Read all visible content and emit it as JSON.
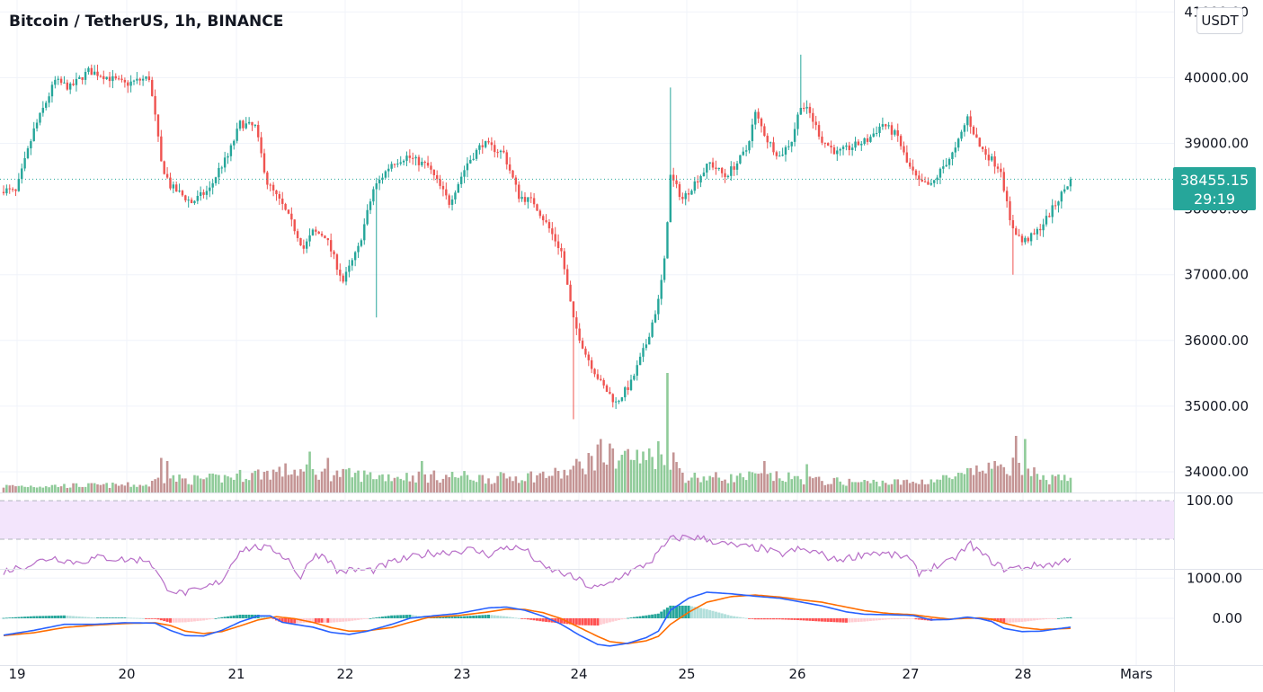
{
  "header": {
    "title": "Bitcoin / TetherUS, 1h, BINANCE",
    "currency": "USDT"
  },
  "price_tag": {
    "price": "38455.15",
    "countdown": "29:19",
    "color": "#26a69a"
  },
  "colors": {
    "up": "#26a69a",
    "down": "#ef5350",
    "vol_up": "#8fcb99",
    "vol_down": "#c49494",
    "rsi_line": "#b86fc8",
    "rsi_band": "#f3e5fc",
    "macd_line": "#2962ff",
    "signal_line": "#ff6d00",
    "hist_up_strong": "#26a69a",
    "hist_up_weak": "#b2dfdb",
    "hist_down_strong": "#ff5252",
    "hist_down_weak": "#ffcdd2",
    "grid": "#f0f3fa"
  },
  "chart_data": [
    {
      "type": "candlestick",
      "x_axis": {
        "tick_labels": [
          "19",
          "20",
          "21",
          "22",
          "23",
          "24",
          "25",
          "26",
          "27",
          "28",
          "Mars"
        ]
      },
      "y_axis": {
        "tick_labels": [
          "34000.00",
          "35000.00",
          "36000.00",
          "37000.00",
          "38000.00",
          "39000.00",
          "40000.00",
          "41000.00"
        ],
        "range": [
          33700,
          41200
        ]
      },
      "last_price": 38455.15,
      "close_path": [
        [
          0,
          38300
        ],
        [
          4,
          38250
        ],
        [
          10,
          39200
        ],
        [
          17,
          39950
        ],
        [
          22,
          39850
        ],
        [
          28,
          40100
        ],
        [
          32,
          40050
        ],
        [
          40,
          39900
        ],
        [
          48,
          40000
        ],
        [
          50,
          39400
        ],
        [
          52,
          38700
        ],
        [
          55,
          38350
        ],
        [
          62,
          38100
        ],
        [
          68,
          38300
        ],
        [
          71,
          38600
        ],
        [
          74,
          38800
        ],
        [
          78,
          39300
        ],
        [
          83,
          39250
        ],
        [
          87,
          38400
        ],
        [
          92,
          38050
        ],
        [
          96,
          37700
        ],
        [
          99,
          37400
        ],
        [
          102,
          37650
        ],
        [
          106,
          37600
        ],
        [
          112,
          36900
        ],
        [
          117,
          37400
        ],
        [
          122,
          38300
        ],
        [
          128,
          38700
        ],
        [
          133,
          38800
        ],
        [
          140,
          38650
        ],
        [
          147,
          38100
        ],
        [
          153,
          38700
        ],
        [
          158,
          39000
        ],
        [
          165,
          38850
        ],
        [
          170,
          38200
        ],
        [
          175,
          38100
        ],
        [
          180,
          37700
        ],
        [
          184,
          37350
        ],
        [
          188,
          36300
        ],
        [
          192,
          35800
        ],
        [
          197,
          35350
        ],
        [
          202,
          35050
        ],
        [
          207,
          35350
        ],
        [
          212,
          35950
        ],
        [
          216,
          36600
        ],
        [
          218,
          37200
        ],
        [
          220,
          38500
        ],
        [
          224,
          38150
        ],
        [
          228,
          38400
        ],
        [
          233,
          38700
        ],
        [
          238,
          38500
        ],
        [
          242,
          38700
        ],
        [
          245,
          38900
        ],
        [
          248,
          39450
        ],
        [
          252,
          39050
        ],
        [
          256,
          38800
        ],
        [
          260,
          39050
        ],
        [
          263,
          39600
        ],
        [
          266,
          39450
        ],
        [
          270,
          39050
        ],
        [
          275,
          38850
        ],
        [
          280,
          38950
        ],
        [
          285,
          39050
        ],
        [
          290,
          39300
        ],
        [
          295,
          39100
        ],
        [
          298,
          38700
        ],
        [
          302,
          38400
        ],
        [
          306,
          38350
        ],
        [
          310,
          38650
        ],
        [
          314,
          38900
        ],
        [
          318,
          39400
        ],
        [
          322,
          38950
        ],
        [
          326,
          38750
        ],
        [
          329,
          38600
        ],
        [
          332,
          37800
        ],
        [
          336,
          37500
        ],
        [
          340,
          37600
        ],
        [
          344,
          37850
        ],
        [
          348,
          38150
        ],
        [
          352,
          38455
        ]
      ],
      "wick_spikes": [
        {
          "i": 220,
          "high": 39850
        },
        {
          "i": 263,
          "high": 40350
        },
        {
          "i": 333,
          "low": 37000
        },
        {
          "i": 188,
          "low": 34800
        },
        {
          "i": 123,
          "low": 36350
        }
      ],
      "volume_path": [
        [
          0,
          1
        ],
        [
          48,
          1.2
        ],
        [
          52,
          2.5
        ],
        [
          60,
          2
        ],
        [
          70,
          2.2
        ],
        [
          80,
          2.8
        ],
        [
          95,
          3.5
        ],
        [
          105,
          3
        ],
        [
          115,
          2.8
        ],
        [
          125,
          2.6
        ],
        [
          140,
          2.5
        ],
        [
          150,
          2.6
        ],
        [
          160,
          2.2
        ],
        [
          170,
          2.5
        ],
        [
          185,
          3
        ],
        [
          195,
          5.5
        ],
        [
          205,
          6
        ],
        [
          212,
          5
        ],
        [
          218,
          7
        ],
        [
          225,
          2.5
        ],
        [
          240,
          2.3
        ],
        [
          250,
          2.6
        ],
        [
          262,
          2.2
        ],
        [
          270,
          1.8
        ],
        [
          285,
          1.6
        ],
        [
          300,
          1.6
        ],
        [
          316,
          2.5
        ],
        [
          322,
          3.5
        ],
        [
          330,
          5
        ],
        [
          340,
          2.2
        ],
        [
          352,
          2
        ]
      ],
      "volume_spikes": [
        {
          "i": 52,
          "v": 5.5
        },
        {
          "i": 54,
          "v": 5
        },
        {
          "i": 101,
          "v": 6.5
        },
        {
          "i": 107,
          "v": 5.5
        },
        {
          "i": 138,
          "v": 5
        },
        {
          "i": 197,
          "v": 8.5
        },
        {
          "i": 201,
          "v": 7
        },
        {
          "i": 213,
          "v": 7
        },
        {
          "i": 219,
          "v": 19
        },
        {
          "i": 251,
          "v": 5
        },
        {
          "i": 265,
          "v": 4.5
        },
        {
          "i": 327,
          "v": 5
        },
        {
          "i": 334,
          "v": 9
        },
        {
          "i": 337,
          "v": 8.5
        },
        {
          "i": 340,
          "v": 4
        }
      ]
    },
    {
      "type": "line",
      "name": "RSI",
      "y_axis": {
        "tick_labels": [
          "100.00"
        ],
        "range": [
          0,
          100
        ],
        "band": [
          30,
          70
        ]
      },
      "values_path": [
        [
          0,
          45
        ],
        [
          8,
          50
        ],
        [
          16,
          56
        ],
        [
          24,
          52
        ],
        [
          32,
          56
        ],
        [
          40,
          54
        ],
        [
          48,
          54
        ],
        [
          53,
          34
        ],
        [
          58,
          28
        ],
        [
          65,
          30
        ],
        [
          72,
          38
        ],
        [
          78,
          62
        ],
        [
          84,
          64
        ],
        [
          90,
          61
        ],
        [
          94,
          54
        ],
        [
          98,
          40
        ],
        [
          102,
          57
        ],
        [
          106,
          58
        ],
        [
          110,
          45
        ],
        [
          116,
          46
        ],
        [
          122,
          46
        ],
        [
          128,
          52
        ],
        [
          135,
          56
        ],
        [
          140,
          59
        ],
        [
          146,
          60
        ],
        [
          154,
          62
        ],
        [
          160,
          58
        ],
        [
          166,
          64
        ],
        [
          172,
          62
        ],
        [
          178,
          48
        ],
        [
          184,
          44
        ],
        [
          190,
          38
        ],
        [
          194,
          32
        ],
        [
          198,
          33
        ],
        [
          204,
          42
        ],
        [
          210,
          48
        ],
        [
          214,
          54
        ],
        [
          220,
          70
        ],
        [
          226,
          72
        ],
        [
          232,
          70
        ],
        [
          238,
          66
        ],
        [
          244,
          64
        ],
        [
          250,
          63
        ],
        [
          256,
          58
        ],
        [
          262,
          62
        ],
        [
          268,
          60
        ],
        [
          274,
          54
        ],
        [
          280,
          56
        ],
        [
          286,
          60
        ],
        [
          292,
          58
        ],
        [
          298,
          56
        ],
        [
          302,
          44
        ],
        [
          306,
          48
        ],
        [
          312,
          52
        ],
        [
          316,
          60
        ],
        [
          319,
          66
        ],
        [
          324,
          56
        ],
        [
          330,
          47
        ],
        [
          336,
          48
        ],
        [
          342,
          50
        ],
        [
          348,
          51
        ],
        [
          352,
          56
        ]
      ]
    },
    {
      "type": "bar+line",
      "name": "MACD",
      "y_axis": {
        "tick_labels": [
          "1000.00",
          "0.00"
        ],
        "range": [
          -700,
          1150
        ]
      },
      "macd_path": [
        [
          0,
          -420
        ],
        [
          10,
          -300
        ],
        [
          20,
          -150
        ],
        [
          30,
          -150
        ],
        [
          40,
          -110
        ],
        [
          50,
          -120
        ],
        [
          55,
          -300
        ],
        [
          60,
          -430
        ],
        [
          66,
          -440
        ],
        [
          72,
          -300
        ],
        [
          78,
          -90
        ],
        [
          84,
          60
        ],
        [
          88,
          60
        ],
        [
          92,
          -100
        ],
        [
          96,
          -150
        ],
        [
          102,
          -220
        ],
        [
          108,
          -350
        ],
        [
          114,
          -400
        ],
        [
          120,
          -320
        ],
        [
          128,
          -150
        ],
        [
          134,
          0
        ],
        [
          140,
          50
        ],
        [
          150,
          120
        ],
        [
          160,
          260
        ],
        [
          166,
          280
        ],
        [
          172,
          200
        ],
        [
          178,
          50
        ],
        [
          184,
          -150
        ],
        [
          190,
          -420
        ],
        [
          196,
          -650
        ],
        [
          200,
          -690
        ],
        [
          206,
          -620
        ],
        [
          212,
          -480
        ],
        [
          216,
          -320
        ],
        [
          220,
          200
        ],
        [
          226,
          500
        ],
        [
          232,
          650
        ],
        [
          240,
          610
        ],
        [
          248,
          550
        ],
        [
          256,
          500
        ],
        [
          262,
          420
        ],
        [
          270,
          310
        ],
        [
          278,
          160
        ],
        [
          284,
          100
        ],
        [
          292,
          90
        ],
        [
          300,
          70
        ],
        [
          306,
          -40
        ],
        [
          312,
          -30
        ],
        [
          318,
          30
        ],
        [
          322,
          -10
        ],
        [
          326,
          -80
        ],
        [
          330,
          -250
        ],
        [
          336,
          -330
        ],
        [
          342,
          -320
        ],
        [
          352,
          -220
        ]
      ],
      "signal_path": [
        [
          0,
          -430
        ],
        [
          10,
          -360
        ],
        [
          20,
          -230
        ],
        [
          30,
          -170
        ],
        [
          40,
          -130
        ],
        [
          50,
          -110
        ],
        [
          55,
          -180
        ],
        [
          60,
          -320
        ],
        [
          66,
          -380
        ],
        [
          72,
          -330
        ],
        [
          78,
          -190
        ],
        [
          84,
          -40
        ],
        [
          90,
          40
        ],
        [
          96,
          -10
        ],
        [
          102,
          -100
        ],
        [
          108,
          -230
        ],
        [
          114,
          -320
        ],
        [
          120,
          -310
        ],
        [
          128,
          -230
        ],
        [
          134,
          -100
        ],
        [
          140,
          20
        ],
        [
          150,
          70
        ],
        [
          160,
          160
        ],
        [
          166,
          230
        ],
        [
          172,
          220
        ],
        [
          178,
          140
        ],
        [
          184,
          -10
        ],
        [
          190,
          -230
        ],
        [
          196,
          -450
        ],
        [
          200,
          -580
        ],
        [
          206,
          -630
        ],
        [
          212,
          -560
        ],
        [
          216,
          -450
        ],
        [
          220,
          -150
        ],
        [
          226,
          150
        ],
        [
          232,
          400
        ],
        [
          240,
          540
        ],
        [
          248,
          580
        ],
        [
          256,
          530
        ],
        [
          262,
          470
        ],
        [
          270,
          400
        ],
        [
          278,
          280
        ],
        [
          284,
          190
        ],
        [
          292,
          120
        ],
        [
          300,
          90
        ],
        [
          306,
          30
        ],
        [
          312,
          -20
        ],
        [
          318,
          0
        ],
        [
          322,
          10
        ],
        [
          326,
          -20
        ],
        [
          330,
          -120
        ],
        [
          336,
          -230
        ],
        [
          342,
          -280
        ],
        [
          352,
          -250
        ]
      ]
    }
  ]
}
